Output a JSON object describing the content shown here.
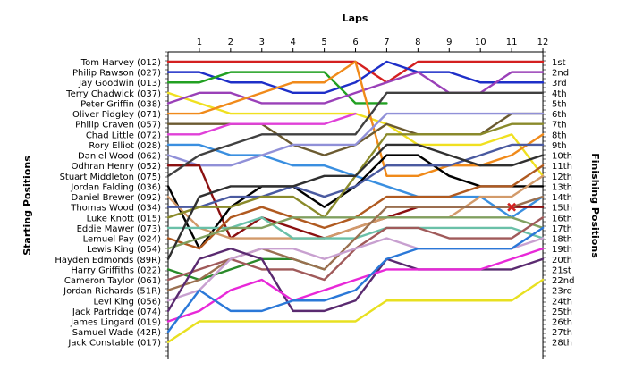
{
  "chart_data": {
    "type": "line",
    "title": "Laps",
    "ylabel_left": "Starting Positions",
    "ylabel_right": "Finishing Positions",
    "x_ticks": [
      "1",
      "2",
      "3",
      "4",
      "5",
      "6",
      "7",
      "8",
      "9",
      "10",
      "11",
      "12"
    ],
    "start_labels": [
      "Tom Harvey (012)",
      "Philip Rawson (027)",
      "Jay Goodwin (013)",
      "Terry Chadwick (037)",
      "Peter Griffin (038)",
      "Oliver Pidgley (071)",
      "Philip Craven (057)",
      "Chad Little (072)",
      "Rory Elliot (028)",
      "Daniel Wood (062)",
      "Odhran Henry (052)",
      "Stuart Middleton (075)",
      "Jordan Falding (036)",
      "Daniel Brewer (092)",
      "Thomas Wood (034)",
      "Luke Knott (015)",
      "Eddie Mawer (073)",
      "Lemuel Pay (024)",
      "Lewis King (054)",
      "Hayden Edmonds (89R)",
      "Harry Griffiths (022)",
      "Cameron Taylor (061)",
      "Jordan Richards (51R)",
      "Levi King (056)",
      "Jack Partridge (074)",
      "James Lingard (019)",
      "Samuel Wade (42R)",
      "Jack Constable (017)"
    ],
    "finish_labels": [
      "1st",
      "2nd",
      "3rd",
      "4th",
      "5th",
      "6th",
      "7th",
      "8th",
      "9th",
      "10th",
      "11th",
      "12th",
      "13th",
      "14th",
      "15th",
      "16th",
      "17th",
      "18th",
      "19th",
      "20th",
      "21st",
      "22nd",
      "23rd",
      "24th",
      "25th",
      "26th",
      "27th",
      "28th"
    ],
    "y_range": [
      1,
      28
    ],
    "x_range": [
      0,
      12
    ],
    "grid": false,
    "series": [
      {
        "color": "#d42020",
        "values": [
          1,
          1,
          1,
          1,
          1,
          1,
          1,
          3,
          1,
          1,
          1,
          1,
          1
        ]
      },
      {
        "color": "#1e2fc8",
        "values": [
          2,
          2,
          3,
          3,
          4,
          4,
          3,
          1,
          2,
          2,
          3,
          3,
          3
        ]
      },
      {
        "color": "#22a022",
        "values": [
          3,
          3,
          2,
          2,
          2,
          2,
          5,
          5
        ]
      },
      {
        "color": "#f0e020",
        "values": [
          4,
          5,
          6,
          6,
          6,
          6,
          6,
          7,
          9,
          9,
          9,
          8,
          12
        ]
      },
      {
        "color": "#9a40b8",
        "values": [
          5,
          4,
          4,
          5,
          5,
          5,
          4,
          3,
          2,
          4,
          4,
          2,
          2
        ]
      },
      {
        "color": "#f08a1a",
        "values": [
          6,
          6,
          5,
          4,
          3,
          3,
          1,
          12,
          12,
          11,
          11,
          10,
          8
        ]
      },
      {
        "color": "#6b5a30",
        "values": [
          7,
          7,
          7,
          7,
          9,
          10,
          9,
          7,
          8,
          8,
          8,
          6,
          6
        ]
      },
      {
        "color": "#e040d8",
        "values": [
          8,
          8,
          7,
          7,
          7,
          7,
          6
        ]
      },
      {
        "color": "#3a8fe0",
        "values": [
          9,
          9,
          10,
          10,
          11,
          11,
          12,
          13,
          14,
          14,
          14,
          16,
          14
        ]
      },
      {
        "color": "#9090d8",
        "values": [
          10,
          11,
          11,
          10,
          9,
          9,
          9,
          6,
          6,
          6,
          6,
          6,
          6
        ]
      },
      {
        "color": "#8b1010",
        "values": [
          11,
          11,
          18,
          16,
          17,
          18,
          17,
          16,
          15,
          15,
          15,
          15,
          15
        ]
      },
      {
        "color": "#404040",
        "values": [
          12,
          10,
          9,
          8,
          8,
          8,
          8,
          4,
          4,
          4,
          4,
          4,
          4
        ]
      },
      {
        "color": "#000000",
        "values": [
          13,
          19,
          15,
          13,
          13,
          15,
          13,
          10,
          10,
          12,
          13,
          13,
          13
        ]
      },
      {
        "color": "#d29a6a",
        "values": [
          14,
          17,
          18,
          18,
          18,
          18,
          17,
          16,
          16,
          16,
          14,
          14,
          12
        ]
      },
      {
        "color": "#4a5aa0",
        "values": [
          15,
          15,
          14,
          14,
          13,
          14,
          13,
          11,
          11,
          11,
          10,
          9,
          9
        ]
      },
      {
        "color": "#8a8a2a",
        "values": [
          16,
          15,
          15,
          14,
          14,
          16,
          12,
          8,
          8,
          8,
          8,
          7,
          7
        ]
      },
      {
        "color": "#6ac0a8",
        "values": [
          17,
          17,
          17,
          16,
          18,
          18,
          18,
          17,
          17,
          17,
          17,
          17,
          18
        ]
      },
      {
        "color": "#b05a20",
        "values": [
          18,
          19,
          16,
          15,
          16,
          17,
          16,
          14,
          14,
          14,
          13,
          13,
          11
        ]
      },
      {
        "color": "#80a060",
        "values": [
          19,
          18,
          17,
          17,
          16,
          16,
          16,
          16,
          16,
          16,
          16,
          16,
          17
        ]
      },
      {
        "color": "#303030",
        "values": [
          20,
          14,
          13,
          13,
          13,
          12,
          12,
          9,
          9,
          10,
          11,
          11,
          10
        ]
      },
      {
        "color": "#2a8a2a",
        "values": [
          21,
          22,
          21,
          20,
          20,
          21
        ]
      },
      {
        "color": "#a05a5a",
        "values": [
          22,
          21,
          20,
          21,
          21,
          22,
          19,
          17,
          17,
          18,
          18,
          18,
          16
        ]
      },
      {
        "color": "#9a7050",
        "values": [
          23,
          22,
          20,
          19,
          20,
          21,
          18,
          15,
          15,
          15,
          15,
          15,
          14
        ]
      },
      {
        "color": "#c8a0d0",
        "values": [
          24,
          23,
          20,
          19,
          19,
          20,
          19,
          18,
          19,
          19,
          19,
          19,
          18
        ]
      },
      {
        "color": "#5a2a70",
        "values": [
          25,
          20,
          19,
          20,
          25,
          25,
          24,
          20,
          21,
          21,
          21,
          21,
          20
        ]
      },
      {
        "color": "#e828d8",
        "values": [
          26,
          25,
          23,
          22,
          24,
          23,
          22,
          21,
          21,
          21,
          21,
          20,
          19
        ]
      },
      {
        "color": "#2a78d8",
        "values": [
          27,
          23,
          25,
          25,
          24,
          24,
          23,
          20,
          19,
          19,
          19,
          19,
          17
        ]
      },
      {
        "color": "#e8e020",
        "values": [
          28,
          26,
          26,
          26,
          26,
          26,
          26,
          24,
          24,
          24,
          24,
          24,
          22
        ]
      }
    ],
    "annotations": [
      {
        "marker": "x",
        "color": "#d42020",
        "lap": 11,
        "position": 15
      }
    ]
  }
}
